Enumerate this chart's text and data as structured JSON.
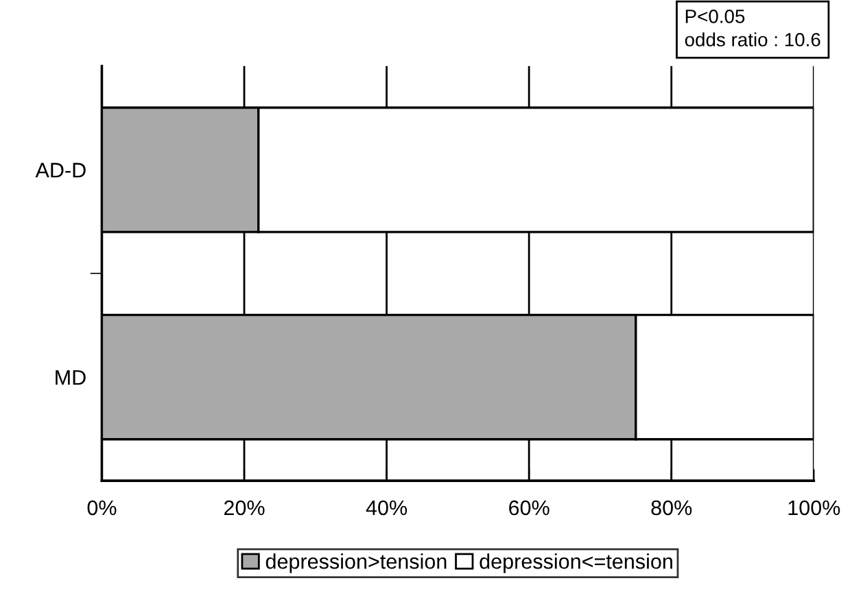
{
  "chart_data": {
    "type": "bar",
    "orientation": "horizontal",
    "stacked": true,
    "categories": [
      "AD-D",
      "MD"
    ],
    "series": [
      {
        "name": "depression>tension",
        "color": "#a9a9a9",
        "values": [
          22,
          75
        ]
      },
      {
        "name": "depression<=tension",
        "color": "#ffffff",
        "values": [
          78,
          25
        ]
      }
    ],
    "xlim": [
      0,
      100
    ],
    "xticks": [
      {
        "value": 0,
        "label": "0%"
      },
      {
        "value": 20,
        "label": "20%"
      },
      {
        "value": 40,
        "label": "40%"
      },
      {
        "value": 60,
        "label": "60%"
      },
      {
        "value": 80,
        "label": "80%"
      },
      {
        "value": 100,
        "label": "100%"
      }
    ],
    "grid": "x",
    "legend": "bottom",
    "annotations": [
      "P<0.05\nodds ratio : 10.6"
    ]
  }
}
